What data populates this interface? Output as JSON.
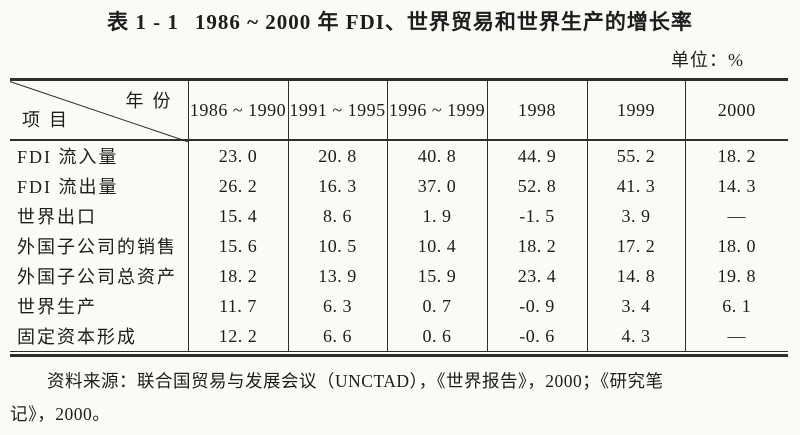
{
  "page": {
    "background_color": "#fbfaf6",
    "ink_color": "#1d1d1d",
    "line_color": "#2e2e2e"
  },
  "title": {
    "prefix": "表 1 - 1",
    "text": "1986 ~ 2000 年 FDI、世界贸易和世界生产的增长率"
  },
  "unit_label": "单位：%",
  "table": {
    "corner": {
      "top_right": "年份",
      "bottom_left": "项目"
    },
    "columns": [
      "1986 ~ 1990",
      "1991 ~ 1995",
      "1996 ~ 1999",
      "1998",
      "1999",
      "2000"
    ],
    "rows": [
      {
        "label": "FDI 流入量",
        "values": [
          "23. 0",
          "20. 8",
          "40. 8",
          "44. 9",
          "55. 2",
          "18. 2"
        ]
      },
      {
        "label": "FDI 流出量",
        "values": [
          "26. 2",
          "16. 3",
          "37. 0",
          "52. 8",
          "41. 3",
          "14. 3"
        ]
      },
      {
        "label": "世界出口",
        "values": [
          "15. 4",
          "8. 6",
          "1. 9",
          "-1. 5",
          "3. 9",
          "—"
        ]
      },
      {
        "label": "外国子公司的销售",
        "values": [
          "15. 6",
          "10. 5",
          "10. 4",
          "18. 2",
          "17. 2",
          "18. 0"
        ]
      },
      {
        "label": "外国子公司总资产",
        "values": [
          "18. 2",
          "13. 9",
          "15. 9",
          "23. 4",
          "14. 8",
          "19. 8"
        ]
      },
      {
        "label": "世界生产",
        "values": [
          "11. 7",
          "6. 3",
          "0. 7",
          "-0. 9",
          "3. 4",
          "6. 1"
        ]
      },
      {
        "label": "固定资本形成",
        "values": [
          "12. 2",
          "6. 6",
          "0. 6",
          "-0. 6",
          "4. 3",
          "—"
        ]
      }
    ]
  },
  "source_note": {
    "line1": "资料来源：联合国贸易与发展会议（UNCTAD），《世界报告》，2000；《研究笔",
    "line2": "记》，2000。"
  }
}
